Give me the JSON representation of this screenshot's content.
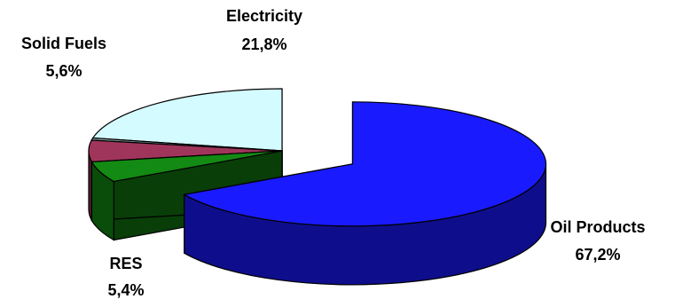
{
  "chart_data": {
    "type": "pie",
    "style": "3d-exploded",
    "legend": "none",
    "slices": [
      {
        "label": "Oil Products",
        "value_label": "67,2%",
        "value": 67.2,
        "color": "#1a1aff",
        "exploded": true
      },
      {
        "label": "RES",
        "value_label": "5,4%",
        "value": 5.4,
        "color": "#138a13",
        "exploded": false
      },
      {
        "label": "Solid Fuels",
        "value_label": "5,6%",
        "value": 5.6,
        "color": "#a0355c",
        "exploded": false
      },
      {
        "label": "",
        "value_label": "",
        "value": 0.0,
        "color": "#7d9797",
        "exploded": false
      },
      {
        "label": "Electricity",
        "value_label": "21,8%",
        "value": 21.8,
        "color": "#d4fbff",
        "exploded": false
      }
    ]
  }
}
